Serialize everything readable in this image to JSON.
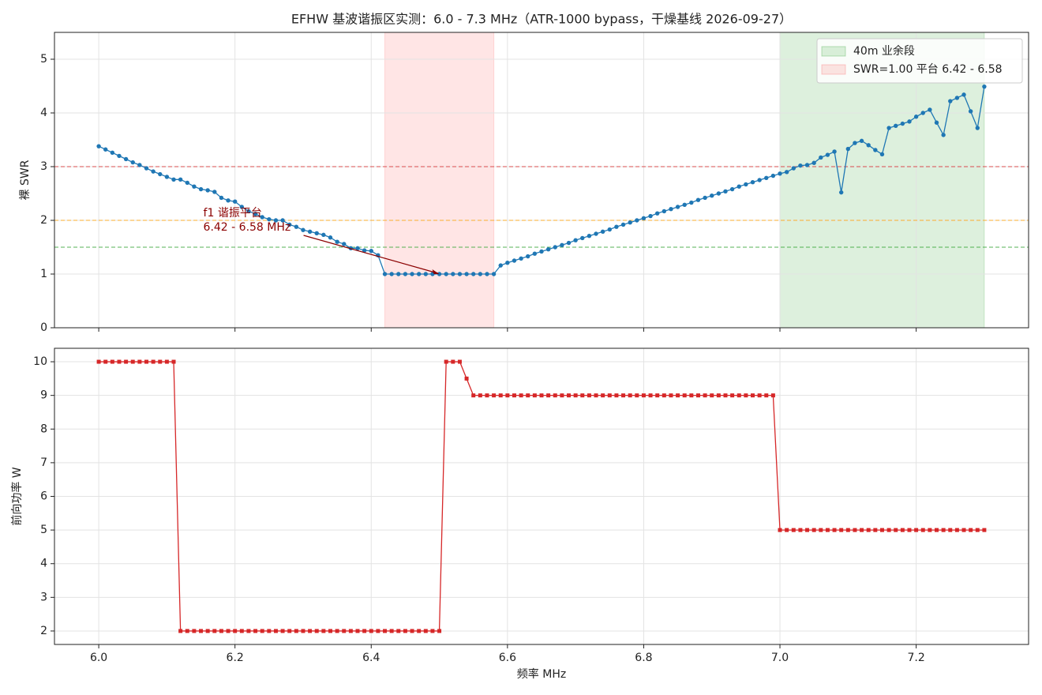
{
  "chart_data": [
    {
      "type": "line",
      "title": "EFHW 基波谐振区实测：6.0 - 7.3 MHz（ATR-1000 bypass，干燥基线 2026-09-27）",
      "ylabel": "裸 SWR",
      "x": [
        6.0,
        6.01,
        6.02,
        6.03,
        6.04,
        6.05,
        6.06,
        6.07,
        6.08,
        6.09,
        6.1,
        6.11,
        6.12,
        6.13,
        6.14,
        6.15,
        6.16,
        6.17,
        6.18,
        6.19,
        6.2,
        6.21,
        6.22,
        6.23,
        6.24,
        6.25,
        6.26,
        6.27,
        6.28,
        6.29,
        6.3,
        6.31,
        6.32,
        6.33,
        6.34,
        6.35,
        6.36,
        6.37,
        6.38,
        6.39,
        6.4,
        6.41,
        6.42,
        6.43,
        6.44,
        6.45,
        6.46,
        6.47,
        6.48,
        6.49,
        6.5,
        6.51,
        6.52,
        6.53,
        6.54,
        6.55,
        6.56,
        6.57,
        6.58,
        6.59,
        6.6,
        6.61,
        6.62,
        6.63,
        6.64,
        6.65,
        6.66,
        6.67,
        6.68,
        6.69,
        6.7,
        6.71,
        6.72,
        6.73,
        6.74,
        6.75,
        6.76,
        6.77,
        6.78,
        6.79,
        6.8,
        6.81,
        6.82,
        6.83,
        6.84,
        6.85,
        6.86,
        6.87,
        6.88,
        6.89,
        6.9,
        6.91,
        6.92,
        6.93,
        6.94,
        6.95,
        6.96,
        6.97,
        6.98,
        6.99,
        7.0,
        7.01,
        7.02,
        7.03,
        7.04,
        7.05,
        7.06,
        7.07,
        7.08,
        7.09,
        7.1,
        7.11,
        7.12,
        7.13,
        7.14,
        7.15,
        7.16,
        7.17,
        7.18,
        7.19,
        7.2,
        7.21,
        7.22,
        7.23,
        7.24,
        7.25,
        7.26,
        7.27,
        7.28,
        7.29,
        7.3
      ],
      "series": [
        {
          "color": "#1f77b4",
          "marker": "circle",
          "values": [
            3.38,
            3.32,
            3.26,
            3.2,
            3.14,
            3.08,
            3.03,
            2.97,
            2.91,
            2.86,
            2.81,
            2.76,
            2.76,
            2.7,
            2.63,
            2.58,
            2.56,
            2.53,
            2.42,
            2.37,
            2.35,
            2.25,
            2.17,
            2.12,
            2.06,
            2.02,
            2.0,
            2.0,
            1.92,
            1.88,
            1.82,
            1.79,
            1.76,
            1.73,
            1.68,
            1.6,
            1.56,
            1.48,
            1.48,
            1.44,
            1.43,
            1.35,
            1.0,
            1.0,
            1.0,
            1.0,
            1.0,
            1.0,
            1.0,
            1.0,
            1.0,
            1.0,
            1.0,
            1.0,
            1.0,
            1.0,
            1.0,
            1.0,
            1.0,
            1.16,
            1.21,
            1.25,
            1.29,
            1.33,
            1.38,
            1.42,
            1.46,
            1.5,
            1.54,
            1.58,
            1.63,
            1.67,
            1.71,
            1.75,
            1.79,
            1.83,
            1.88,
            1.92,
            1.96,
            2.0,
            2.04,
            2.08,
            2.13,
            2.17,
            2.21,
            2.25,
            2.29,
            2.33,
            2.38,
            2.42,
            2.46,
            2.5,
            2.54,
            2.58,
            2.63,
            2.67,
            2.71,
            2.75,
            2.79,
            2.83,
            2.87,
            2.9,
            2.97,
            3.02,
            3.03,
            3.07,
            3.17,
            3.22,
            3.28,
            2.52,
            3.33,
            3.44,
            3.48,
            3.4,
            3.31,
            3.23,
            3.72,
            3.76,
            3.8,
            3.84,
            3.93,
            4.0,
            4.06,
            3.82,
            3.59,
            4.22,
            4.28,
            4.34,
            4.03,
            3.72,
            4.49
          ]
        }
      ],
      "xlim": [
        5.935,
        7.365
      ],
      "xticks": [
        {
          "value": 6.0,
          "label": "6.0"
        },
        6.2,
        6.4,
        6.6,
        6.8,
        {
          "value": 7.0,
          "label": "7.0"
        },
        7.2
      ],
      "ylim": [
        0,
        5.5
      ],
      "yticks": [
        0,
        1,
        2,
        3,
        4,
        5
      ],
      "grid": true,
      "hlines": [
        {
          "value": 3,
          "color": "#d62728"
        },
        {
          "value": 2,
          "color": "#ff9f00"
        },
        {
          "value": 1.5,
          "color": "#2ca02c"
        }
      ],
      "spans": [
        {
          "name": "40m 业余段",
          "from": 7.0,
          "to": 7.3,
          "color": "#2ca02c"
        },
        {
          "name": "SWR=1.00 平台 6.42 - 6.58",
          "from": 6.42,
          "to": 6.58,
          "color": "#ff5c5c"
        }
      ],
      "legend": "upper right",
      "annotation": {
        "lines": [
          "f1 谐振平台",
          "6.42 - 6.58 MHz"
        ],
        "xy": [
          6.5,
          1.0
        ],
        "color": "#8b0000"
      }
    },
    {
      "type": "line",
      "xlabel": "频率 MHz",
      "ylabel": "前向功率 W",
      "x": [
        6.0,
        6.01,
        6.02,
        6.03,
        6.04,
        6.05,
        6.06,
        6.07,
        6.08,
        6.09,
        6.1,
        6.11,
        6.12,
        6.13,
        6.14,
        6.15,
        6.16,
        6.17,
        6.18,
        6.19,
        6.2,
        6.21,
        6.22,
        6.23,
        6.24,
        6.25,
        6.26,
        6.27,
        6.28,
        6.29,
        6.3,
        6.31,
        6.32,
        6.33,
        6.34,
        6.35,
        6.36,
        6.37,
        6.38,
        6.39,
        6.4,
        6.41,
        6.42,
        6.43,
        6.44,
        6.45,
        6.46,
        6.47,
        6.48,
        6.49,
        6.5,
        6.51,
        6.52,
        6.53,
        6.54,
        6.55,
        6.56,
        6.57,
        6.58,
        6.59,
        6.6,
        6.61,
        6.62,
        6.63,
        6.64,
        6.65,
        6.66,
        6.67,
        6.68,
        6.69,
        6.7,
        6.71,
        6.72,
        6.73,
        6.74,
        6.75,
        6.76,
        6.77,
        6.78,
        6.79,
        6.8,
        6.81,
        6.82,
        6.83,
        6.84,
        6.85,
        6.86,
        6.87,
        6.88,
        6.89,
        6.9,
        6.91,
        6.92,
        6.93,
        6.94,
        6.95,
        6.96,
        6.97,
        6.98,
        6.99,
        7.0,
        7.01,
        7.02,
        7.03,
        7.04,
        7.05,
        7.06,
        7.07,
        7.08,
        7.09,
        7.1,
        7.11,
        7.12,
        7.13,
        7.14,
        7.15,
        7.16,
        7.17,
        7.18,
        7.19,
        7.2,
        7.21,
        7.22,
        7.23,
        7.24,
        7.25,
        7.26,
        7.27,
        7.28,
        7.29,
        7.3
      ],
      "series": [
        {
          "color": "#d62728",
          "marker": "square",
          "values": [
            10,
            10,
            10,
            10,
            10,
            10,
            10,
            10,
            10,
            10,
            10,
            10,
            2,
            2,
            2,
            2,
            2,
            2,
            2,
            2,
            2,
            2,
            2,
            2,
            2,
            2,
            2,
            2,
            2,
            2,
            2,
            2,
            2,
            2,
            2,
            2,
            2,
            2,
            2,
            2,
            2,
            2,
            2,
            2,
            2,
            2,
            2,
            2,
            2,
            2,
            2,
            10,
            10,
            10,
            9.5,
            9,
            9,
            9,
            9,
            9,
            9,
            9,
            9,
            9,
            9,
            9,
            9,
            9,
            9,
            9,
            9,
            9,
            9,
            9,
            9,
            9,
            9,
            9,
            9,
            9,
            9,
            9,
            9,
            9,
            9,
            9,
            9,
            9,
            9,
            9,
            9,
            9,
            9,
            9,
            9,
            9,
            9,
            9,
            9,
            9,
            5,
            5,
            5,
            5,
            5,
            5,
            5,
            5,
            5,
            5,
            5,
            5,
            5,
            5,
            5,
            5,
            5,
            5,
            5,
            5,
            5,
            5,
            5,
            5,
            5,
            5,
            5,
            5,
            5,
            5,
            5
          ]
        }
      ],
      "xlim": [
        5.935,
        7.365
      ],
      "xticks": [
        {
          "value": 6.0,
          "label": "6.0"
        },
        6.2,
        6.4,
        6.6,
        6.8,
        {
          "value": 7.0,
          "label": "7.0"
        },
        7.2
      ],
      "ylim": [
        1.6,
        10.4
      ],
      "yticks": [
        2,
        3,
        4,
        5,
        6,
        7,
        8,
        9,
        10
      ],
      "grid": true
    }
  ]
}
